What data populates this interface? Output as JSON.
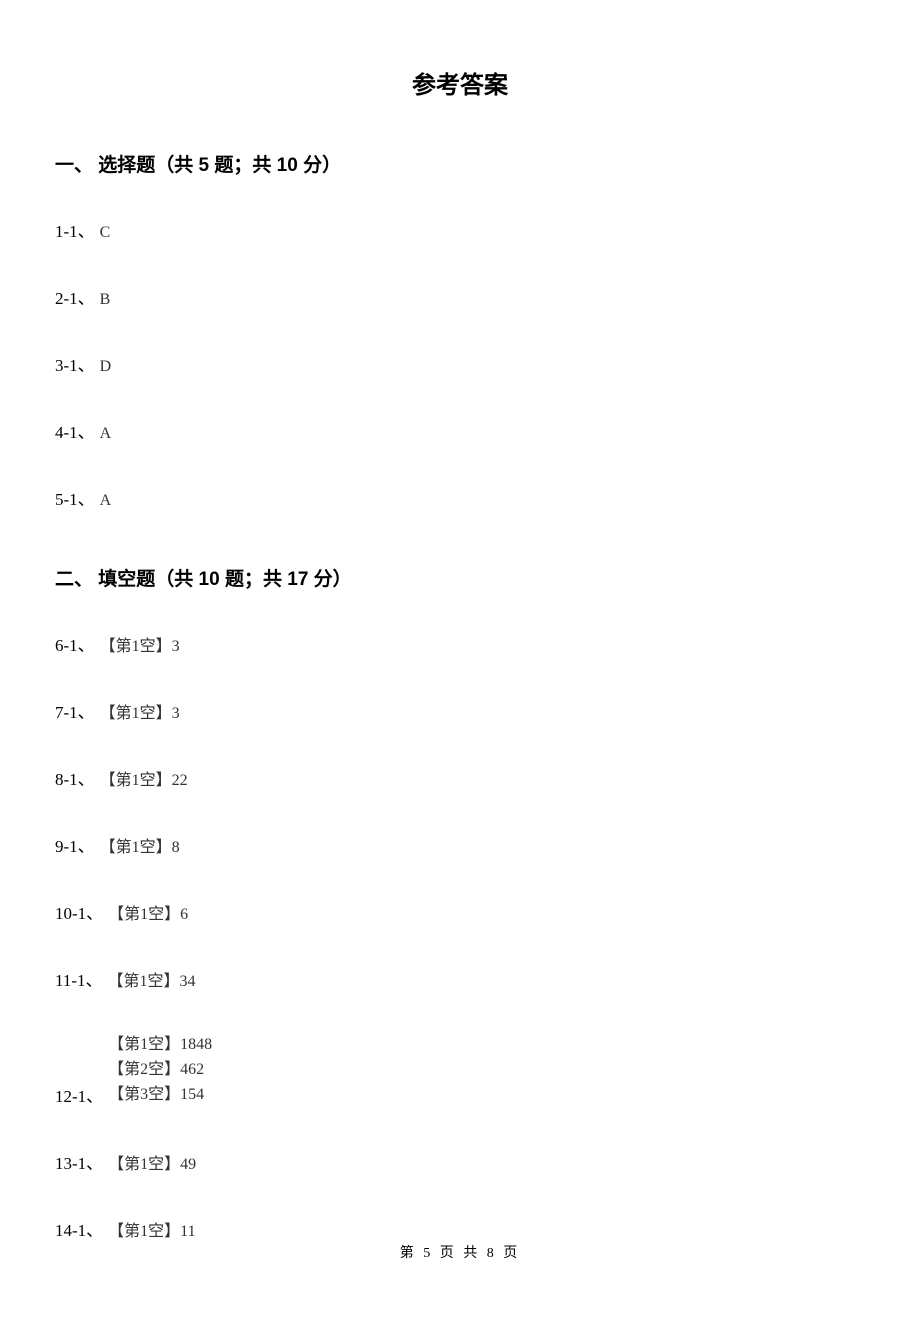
{
  "title": "参考答案",
  "section1": {
    "header": "一、 选择题（共 5 题；共 10 分）",
    "answers": [
      {
        "label": "1-1、",
        "value": "C"
      },
      {
        "label": "2-1、",
        "value": "B"
      },
      {
        "label": "3-1、",
        "value": "D"
      },
      {
        "label": "4-1、",
        "value": "A"
      },
      {
        "label": "5-1、",
        "value": "A"
      }
    ]
  },
  "section2": {
    "header": "二、 填空题（共 10 题；共 17 分）",
    "answers": [
      {
        "label": "6-1、",
        "blanks": [
          "【第1空】3"
        ]
      },
      {
        "label": "7-1、",
        "blanks": [
          "【第1空】3"
        ]
      },
      {
        "label": "8-1、",
        "blanks": [
          "【第1空】22"
        ]
      },
      {
        "label": "9-1、",
        "blanks": [
          "【第1空】8"
        ]
      },
      {
        "label": "10-1、",
        "blanks": [
          "【第1空】6"
        ]
      },
      {
        "label": "11-1、",
        "blanks": [
          "【第1空】34"
        ]
      },
      {
        "label": "12-1、",
        "blanks": [
          "【第1空】1848",
          "【第2空】462",
          "【第3空】154"
        ]
      },
      {
        "label": "13-1、",
        "blanks": [
          "【第1空】49"
        ]
      },
      {
        "label": "14-1、",
        "blanks": [
          "【第1空】11"
        ]
      }
    ]
  },
  "footer": "第 5 页 共 8 页"
}
